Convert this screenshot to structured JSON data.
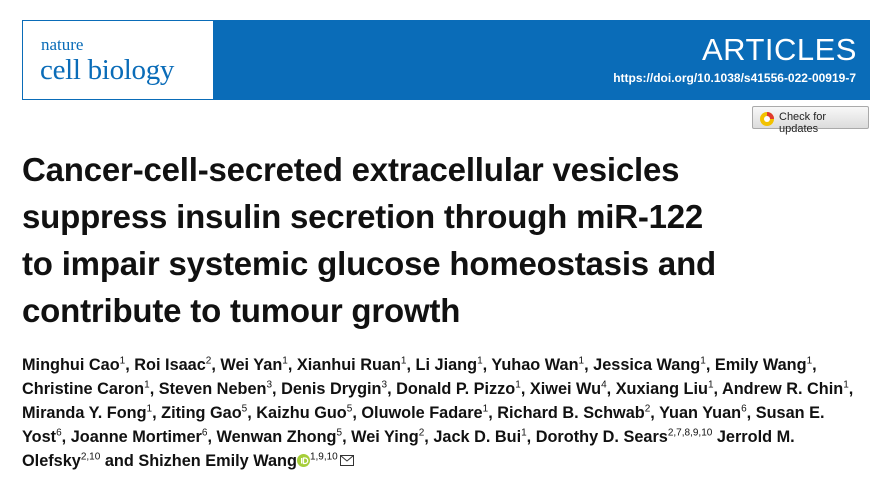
{
  "header": {
    "journal_line1": "nature",
    "journal_line2": "cell biology",
    "section": "ARTICLES",
    "doi": "https://doi.org/10.1038/s41556-022-00919-7",
    "update_button": "Check for updates"
  },
  "title": [
    "Cancer-cell-secreted extracellular vesicles",
    "suppress insulin secretion through miR-122",
    "to impair systemic glucose homeostasis and",
    "contribute to tumour growth"
  ],
  "authors": [
    {
      "name": "Minghui Cao",
      "affiliations": "1"
    },
    {
      "name": "Roi Isaac",
      "affiliations": "2"
    },
    {
      "name": "Wei Yan",
      "affiliations": "1"
    },
    {
      "name": "Xianhui Ruan",
      "affiliations": "1"
    },
    {
      "name": "Li Jiang",
      "affiliations": "1"
    },
    {
      "name": "Yuhao Wan",
      "affiliations": "1"
    },
    {
      "name": "Jessica Wang",
      "affiliations": "1"
    },
    {
      "name": "Emily Wang",
      "affiliations": "1"
    },
    {
      "name": "Christine Caron",
      "affiliations": "1"
    },
    {
      "name": "Steven Neben",
      "affiliations": "3"
    },
    {
      "name": "Denis Drygin",
      "affiliations": "3"
    },
    {
      "name": "Donald P. Pizzo",
      "affiliations": "1"
    },
    {
      "name": "Xiwei Wu",
      "affiliations": "4"
    },
    {
      "name": "Xuxiang Liu",
      "affiliations": "1"
    },
    {
      "name": "Andrew R. Chin",
      "affiliations": "1"
    },
    {
      "name": "Miranda Y. Fong",
      "affiliations": "1"
    },
    {
      "name": "Ziting Gao",
      "affiliations": "5"
    },
    {
      "name": "Kaizhu Guo",
      "affiliations": "5"
    },
    {
      "name": "Oluwole Fadare",
      "affiliations": "1"
    },
    {
      "name": "Richard B. Schwab",
      "affiliations": "2"
    },
    {
      "name": "Yuan Yuan",
      "affiliations": "6"
    },
    {
      "name": "Susan E. Yost",
      "affiliations": "6"
    },
    {
      "name": "Joanne Mortimer",
      "affiliations": "6"
    },
    {
      "name": "Wenwan Zhong",
      "affiliations": "5"
    },
    {
      "name": "Wei Ying",
      "affiliations": "2"
    },
    {
      "name": "Jack D. Bui",
      "affiliations": "1"
    },
    {
      "name": "Dorothy D. Sears",
      "affiliations": "2,7,8,9,10"
    },
    {
      "name": "Jerrold M. Olefsky",
      "affiliations": "2,10"
    },
    {
      "name": "Shizhen Emily Wang",
      "affiliations": "1,9,10"
    }
  ],
  "author_conjunction": "and"
}
